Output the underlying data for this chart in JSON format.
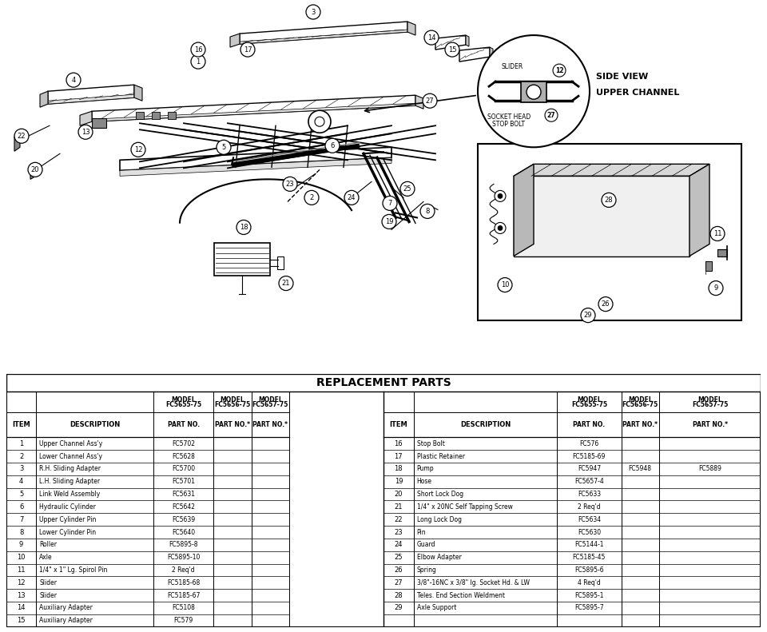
{
  "title": "REPLACEMENT PARTS",
  "bg_color": "#ffffff",
  "left_rows": [
    [
      "1",
      "Upper Channel Ass'y",
      "FC5702",
      "",
      ""
    ],
    [
      "2",
      "Lower Channel Ass'y",
      "FC5628",
      "",
      ""
    ],
    [
      "3",
      "R.H. Sliding Adapter",
      "FC5700",
      "",
      ""
    ],
    [
      "4",
      "L.H. Sliding Adapter",
      "FC5701",
      "",
      ""
    ],
    [
      "5",
      "Link Weld Assembly",
      "FC5631",
      "",
      ""
    ],
    [
      "6",
      "Hydraulic Cylinder",
      "FC5642",
      "",
      ""
    ],
    [
      "7",
      "Upper Cylinder Pin",
      "FC5639",
      "",
      ""
    ],
    [
      "8",
      "Lower Cylinder Pin",
      "FC5640",
      "",
      ""
    ],
    [
      "9",
      "Roller",
      "FC5895-8",
      "",
      ""
    ],
    [
      "10",
      "Axle",
      "FC5895-10",
      "",
      ""
    ],
    [
      "11",
      "1/4\" x 1\" Lg. Spirol Pin",
      "2 Req'd",
      "",
      ""
    ],
    [
      "12",
      "Slider",
      "FC5185-68",
      "",
      ""
    ],
    [
      "13",
      "Slider",
      "FC5185-67",
      "",
      ""
    ],
    [
      "14",
      "Auxiliary Adapter",
      "FC5108",
      "",
      ""
    ],
    [
      "15",
      "Auxiliary Adapter",
      "FC579",
      "",
      ""
    ]
  ],
  "right_rows": [
    [
      "16",
      "Stop Bolt",
      "FC576",
      "",
      ""
    ],
    [
      "17",
      "Plastic Retainer",
      "FC5185-69",
      "",
      ""
    ],
    [
      "18",
      "Pump",
      "FC5947",
      "FC5948",
      "FC5889"
    ],
    [
      "19",
      "Hose",
      "FC5657-4",
      "",
      ""
    ],
    [
      "20",
      "Short Lock Dog",
      "FC5633",
      "",
      ""
    ],
    [
      "21",
      "1/4\" x 20NC Self Tapping Screw",
      "2 Req'd",
      "",
      ""
    ],
    [
      "22",
      "Long Lock Dog",
      "FC5634",
      "",
      ""
    ],
    [
      "23",
      "Pin",
      "FC5630",
      "",
      ""
    ],
    [
      "24",
      "Guard",
      "FC5144-1",
      "",
      ""
    ],
    [
      "25",
      "Elbow Adapter",
      "FC5185-45",
      "",
      ""
    ],
    [
      "26",
      "Spring",
      "FC5895-6",
      "",
      ""
    ],
    [
      "27",
      "3/8\"-16NC x 3/8\" lg. Socket Hd. & LW",
      "4 Req'd",
      "",
      ""
    ],
    [
      "28",
      "Teles. End Section Weldment",
      "FC5895-1",
      "",
      ""
    ],
    [
      "29",
      "Axle Support",
      "FC5895-7",
      "",
      ""
    ]
  ],
  "model_headers": [
    [
      "MODEL",
      "FC5655-75"
    ],
    [
      "MODEL",
      "FC5656-75"
    ],
    [
      "MODEL",
      "FC5657-75"
    ]
  ],
  "part_no_headers": [
    "PART NO.",
    "PART NO.*",
    "PART NO.*"
  ]
}
